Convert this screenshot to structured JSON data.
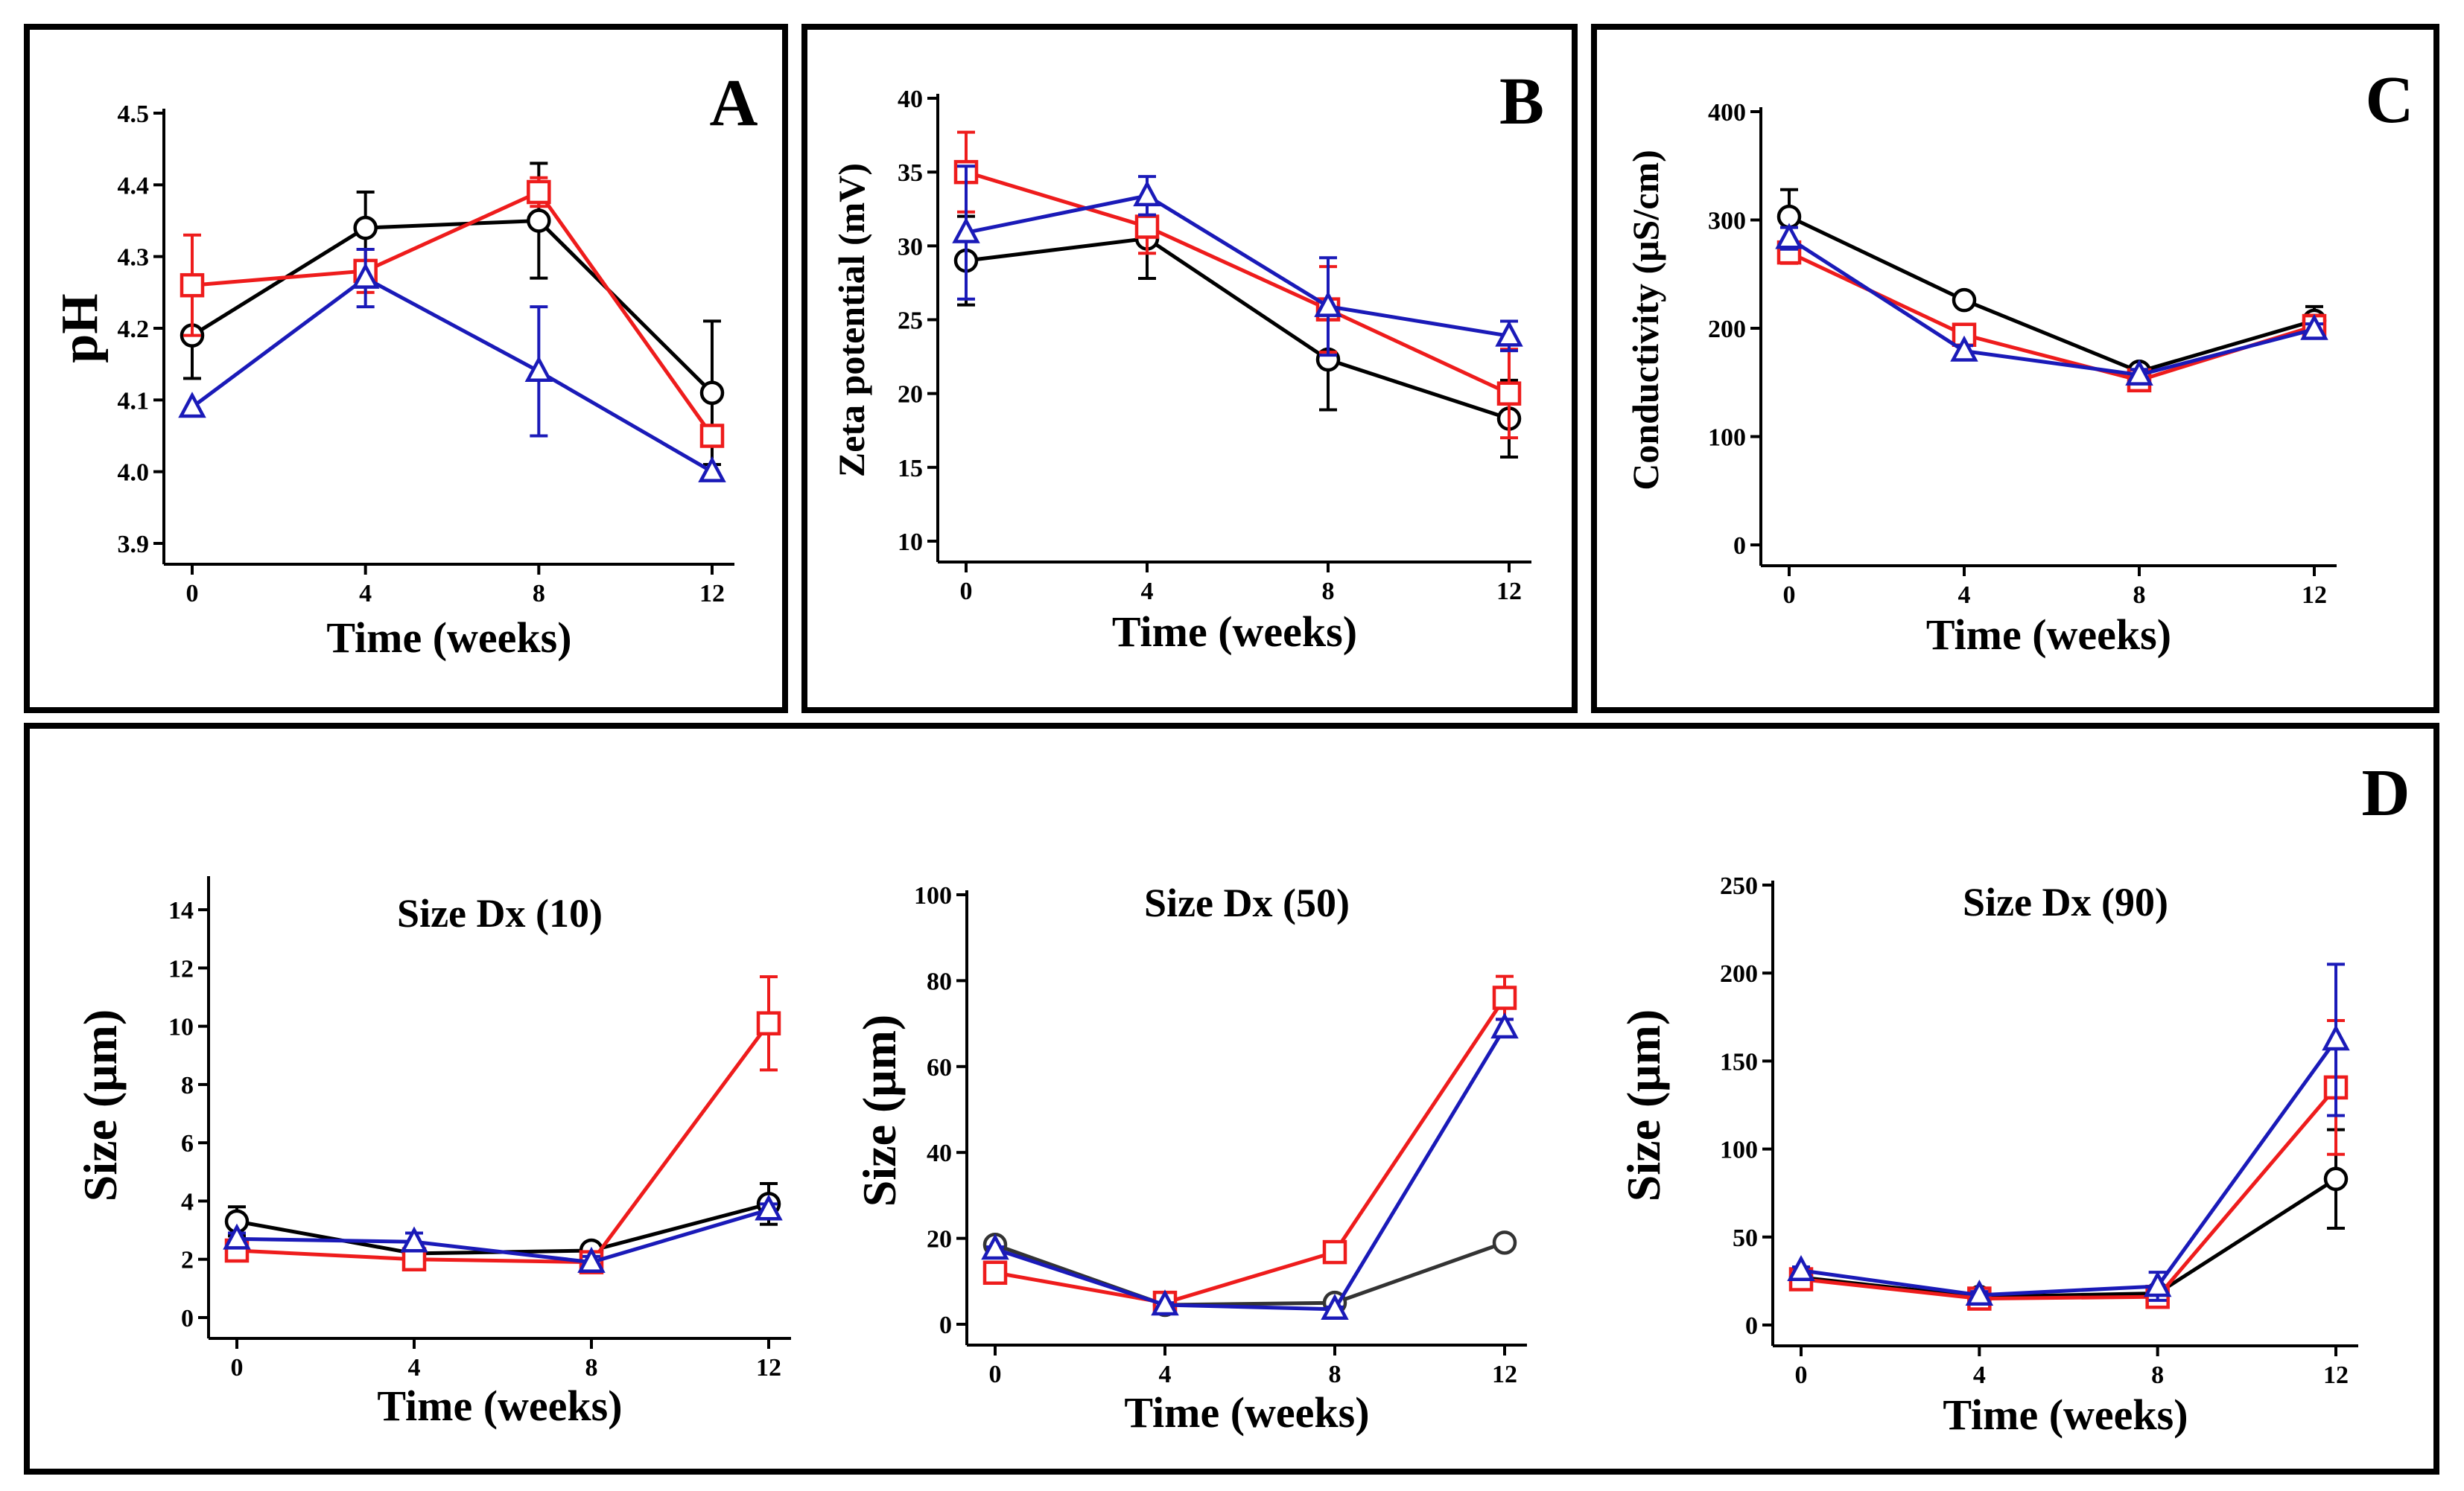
{
  "panels": [
    {
      "id": "A",
      "letter": "A",
      "chart_data": {
        "type": "line",
        "title": "",
        "xlabel": "Time (weeks)",
        "ylabel": "pH",
        "x": [
          0,
          4,
          8,
          12
        ],
        "xticks": [
          0,
          4,
          8,
          12
        ],
        "ylim": [
          3.9,
          4.5
        ],
        "yticks": [
          3.9,
          4.0,
          4.1,
          4.2,
          4.3,
          4.4,
          4.5
        ],
        "ytick_labels": [
          "3.9",
          "4.0",
          "4.1",
          "4.2",
          "4.3",
          "4.4",
          "4.5"
        ],
        "series": [
          {
            "name": "black",
            "color": "#000000",
            "marker": "circle",
            "values": [
              4.19,
              4.34,
              4.35,
              4.11
            ],
            "errors": [
              0.06,
              0.05,
              0.08,
              0.1
            ]
          },
          {
            "name": "red",
            "color": "#ee1c1c",
            "marker": "square",
            "values": [
              4.26,
              4.28,
              4.39,
              4.05
            ],
            "errors": [
              0.07,
              0.03,
              0.02,
              0.0
            ]
          },
          {
            "name": "blue",
            "color": "#1a1ab8",
            "marker": "triangle",
            "values": [
              4.09,
              4.27,
              4.14,
              4.0
            ],
            "errors": [
              0.0,
              0.04,
              0.09,
              0.0
            ]
          }
        ]
      }
    },
    {
      "id": "B",
      "letter": "B",
      "chart_data": {
        "type": "line",
        "title": "",
        "xlabel": "Time (weeks)",
        "ylabel": "Zeta potential (mV)",
        "x": [
          0,
          4,
          8,
          12
        ],
        "xticks": [
          0,
          4,
          8,
          12
        ],
        "ylim": [
          10,
          40
        ],
        "yticks": [
          10,
          15,
          20,
          25,
          30,
          35,
          40
        ],
        "ytick_labels": [
          "10",
          "15",
          "20",
          "25",
          "30",
          "35",
          "40"
        ],
        "series": [
          {
            "name": "black",
            "color": "#000000",
            "marker": "circle",
            "values": [
              29.0,
              30.5,
              22.3,
              18.3
            ],
            "errors": [
              3.0,
              2.7,
              3.4,
              2.6
            ]
          },
          {
            "name": "red",
            "color": "#ee1c1c",
            "marker": "square",
            "values": [
              35.0,
              31.3,
              25.7,
              20.0
            ],
            "errors": [
              2.7,
              1.8,
              2.9,
              3.0
            ]
          },
          {
            "name": "blue",
            "color": "#1a1ab8",
            "marker": "triangle",
            "values": [
              30.9,
              33.4,
              25.9,
              23.9
            ],
            "errors": [
              4.5,
              1.3,
              3.3,
              1.0
            ]
          }
        ]
      }
    },
    {
      "id": "C",
      "letter": "C",
      "chart_data": {
        "type": "line",
        "title": "",
        "xlabel": "Time (weeks)",
        "ylabel": "Conductivity (μS/cm)",
        "x": [
          0,
          4,
          8,
          12
        ],
        "xticks": [
          0,
          4,
          8,
          12
        ],
        "ylim": [
          0,
          400
        ],
        "yticks": [
          0,
          100,
          200,
          300,
          400
        ],
        "ytick_labels": [
          "0",
          "100",
          "200",
          "300",
          "400"
        ],
        "series": [
          {
            "name": "black",
            "color": "#000000",
            "marker": "circle",
            "values": [
              303,
              226,
              160,
              207
            ],
            "errors": [
              25,
              3,
              5,
              13
            ]
          },
          {
            "name": "red",
            "color": "#ee1c1c",
            "marker": "square",
            "values": [
              270,
              194,
              152,
              202
            ],
            "errors": [
              10,
              5,
              5,
              10
            ]
          },
          {
            "name": "blue",
            "color": "#1a1ab8",
            "marker": "triangle",
            "values": [
              283,
              179,
              157,
              199
            ],
            "errors": [
              10,
              5,
              5,
              5
            ]
          }
        ]
      }
    },
    {
      "id": "D1",
      "letter": "",
      "chart_data": {
        "type": "line",
        "title": "Size Dx (10)",
        "xlabel": "Time (weeks)",
        "ylabel": "Size (μm)",
        "x": [
          0,
          4,
          8,
          12
        ],
        "xticks": [
          0,
          4,
          8,
          12
        ],
        "ylim": [
          0,
          15
        ],
        "yticks": [
          0,
          2,
          4,
          6,
          8,
          10,
          12,
          14
        ],
        "ytick_labels": [
          "0",
          "2",
          "4",
          "6",
          "8",
          "10",
          "12",
          "14"
        ],
        "series": [
          {
            "name": "black",
            "color": "#000000",
            "marker": "circle",
            "values": [
              3.3,
              2.2,
              2.3,
              3.9
            ],
            "errors": [
              0.5,
              0.3,
              0.15,
              0.7
            ]
          },
          {
            "name": "red",
            "color": "#ee1c1c",
            "marker": "square",
            "values": [
              2.3,
              2.0,
              1.9,
              10.1
            ],
            "errors": [
              0.2,
              0.2,
              0.2,
              1.6
            ]
          },
          {
            "name": "blue",
            "color": "#1a1ab8",
            "marker": "triangle",
            "values": [
              2.7,
              2.6,
              1.9,
              3.7
            ],
            "errors": [
              0.2,
              0.3,
              0.2,
              0.2
            ]
          }
        ]
      }
    },
    {
      "id": "D2",
      "letter": "",
      "chart_data": {
        "type": "line",
        "title": "Size Dx (50)",
        "xlabel": "Time (weeks)",
        "ylabel": "Size (μm)",
        "x": [
          0,
          4,
          8,
          12
        ],
        "xticks": [
          0,
          4,
          8,
          12
        ],
        "ylim": [
          0,
          100
        ],
        "yticks": [
          0,
          20,
          40,
          60,
          80,
          100
        ],
        "ytick_labels": [
          "0",
          "20",
          "40",
          "60",
          "80",
          "100"
        ],
        "series": [
          {
            "name": "black",
            "color": "#333333",
            "marker": "circle",
            "values": [
              18.5,
              4.5,
              5.0,
              19.0
            ],
            "errors": [
              0.5,
              0.5,
              0.5,
              0.5
            ]
          },
          {
            "name": "red",
            "color": "#ee1c1c",
            "marker": "square",
            "values": [
              12.0,
              5.0,
              16.8,
              76.0
            ],
            "errors": [
              0.5,
              0.5,
              0.5,
              5.0
            ]
          },
          {
            "name": "blue",
            "color": "#1a1ab8",
            "marker": "triangle",
            "values": [
              17.5,
              4.5,
              3.5,
              69.0
            ],
            "errors": [
              0.5,
              0.5,
              0.5,
              2.0
            ]
          }
        ]
      }
    },
    {
      "id": "D3",
      "letter": "",
      "chart_data": {
        "type": "line",
        "title": "Size Dx (90)",
        "xlabel": "Time (weeks)",
        "ylabel": "Size (μm)",
        "x": [
          0,
          4,
          8,
          12
        ],
        "xticks": [
          0,
          4,
          8,
          12
        ],
        "ylim": [
          0,
          250
        ],
        "yticks": [
          0,
          50,
          100,
          150,
          200,
          250
        ],
        "ytick_labels": [
          "0",
          "50",
          "100",
          "150",
          "200",
          "250"
        ],
        "series": [
          {
            "name": "black",
            "color": "#000000",
            "marker": "circle",
            "values": [
              27,
              16,
              18,
              83
            ],
            "errors": [
              2,
              2,
              2,
              28
            ]
          },
          {
            "name": "red",
            "color": "#ee1c1c",
            "marker": "square",
            "values": [
              26,
              15,
              16,
              135
            ],
            "errors": [
              2,
              2,
              2,
              38
            ]
          },
          {
            "name": "blue",
            "color": "#1a1ab8",
            "marker": "triangle",
            "values": [
              31,
              17,
              22,
              162
            ],
            "errors": [
              2,
              2,
              8,
              43
            ]
          }
        ]
      }
    }
  ],
  "groups": [
    {
      "id": "D",
      "letter": "D"
    }
  ]
}
